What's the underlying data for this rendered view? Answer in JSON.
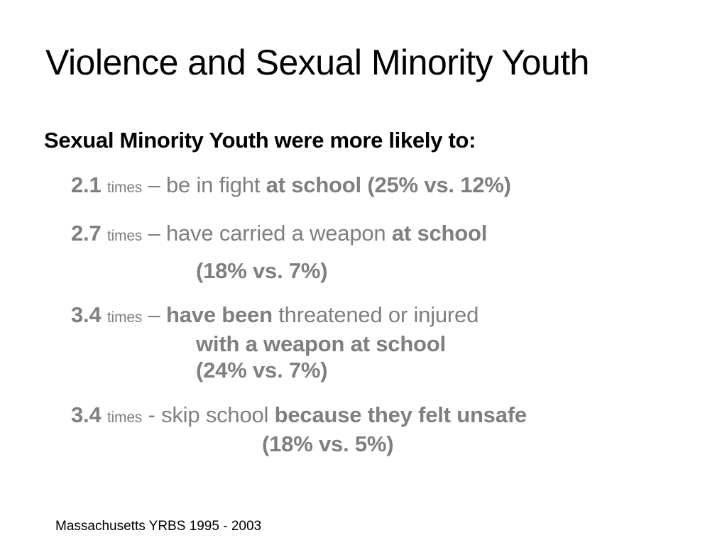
{
  "slide": {
    "title": "Violence and Sexual Minority Youth",
    "subtitle": "Sexual Minority Youth were more likely to:",
    "items": [
      {
        "multiplier": "2.1",
        "times": "times",
        "separator": "–",
        "text": "be in fight",
        "bold_text": "at school (25% vs. 12%)"
      },
      {
        "multiplier": "2.7",
        "times": "times",
        "separator": "–",
        "text": "have carried a weapon",
        "bold_text": "at school",
        "continuation": "(18% vs. 7%)"
      },
      {
        "multiplier": "3.4",
        "times": "times",
        "separator": "–",
        "bold_lead": "have been",
        "text": "threatened or injured",
        "continuation_1": "with a weapon at school",
        "continuation_2": "(24% vs. 7%)"
      },
      {
        "multiplier": "3.4",
        "times": "times",
        "separator": "-",
        "text": "skip school",
        "bold_text": "because they felt unsafe",
        "continuation": "(18% vs. 5%)"
      }
    ],
    "source": "Massachusetts YRBS 1995 - 2003",
    "colors": {
      "title": "#000000",
      "body_gray": "#7f7f7f",
      "background": "#ffffff"
    }
  }
}
